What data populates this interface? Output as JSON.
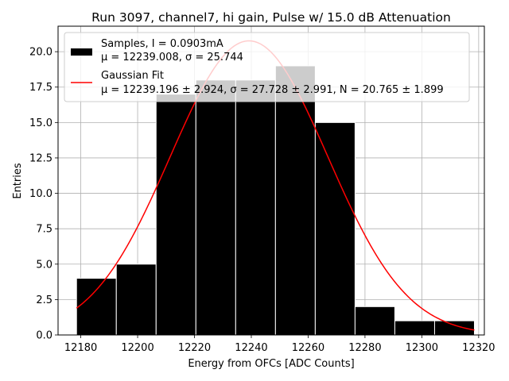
{
  "chart_data": {
    "type": "bar",
    "title": "Run 3097, channel7, hi gain, Pulse w/ 15.0 dB Attenuation",
    "xlabel": "Energy from OFCs [ADC Counts]",
    "ylabel": "Entries",
    "xlim": [
      12172,
      12322
    ],
    "ylim": [
      0,
      21.8
    ],
    "xticks": [
      12180,
      12200,
      12220,
      12240,
      12260,
      12280,
      12300,
      12320
    ],
    "yticks": [
      0.0,
      2.5,
      5.0,
      7.5,
      10.0,
      12.5,
      15.0,
      17.5,
      20.0
    ],
    "ytick_labels": [
      "0.0",
      "2.5",
      "5.0",
      "7.5",
      "10.0",
      "12.5",
      "15.0",
      "17.5",
      "20.0"
    ],
    "grid": true,
    "legend_position": "top",
    "histogram": {
      "bin_edges": [
        12178.5,
        12192.5,
        12206.5,
        12220.5,
        12234.5,
        12248.5,
        12262.5,
        12276.5,
        12290.5,
        12304.5,
        12318.5
      ],
      "counts": [
        4,
        5,
        17,
        18,
        18,
        19,
        15,
        2,
        1,
        1
      ],
      "color": "#000000",
      "edge_color": "#ffffff"
    },
    "fit": {
      "mu": 12239.196,
      "sigma": 27.728,
      "N": 20.765,
      "x_range": [
        12178.5,
        12318.5
      ],
      "color": "#ff0000"
    },
    "series": [
      {
        "name": "Samples, I = 0.0903mA",
        "detail": "μ = 12239.008, σ = 25.744"
      },
      {
        "name": "Gaussian Fit",
        "detail": "μ = 12239.196 ± 2.924, σ = 27.728 ± 2.991, N = 20.765 ± 1.899"
      }
    ]
  }
}
